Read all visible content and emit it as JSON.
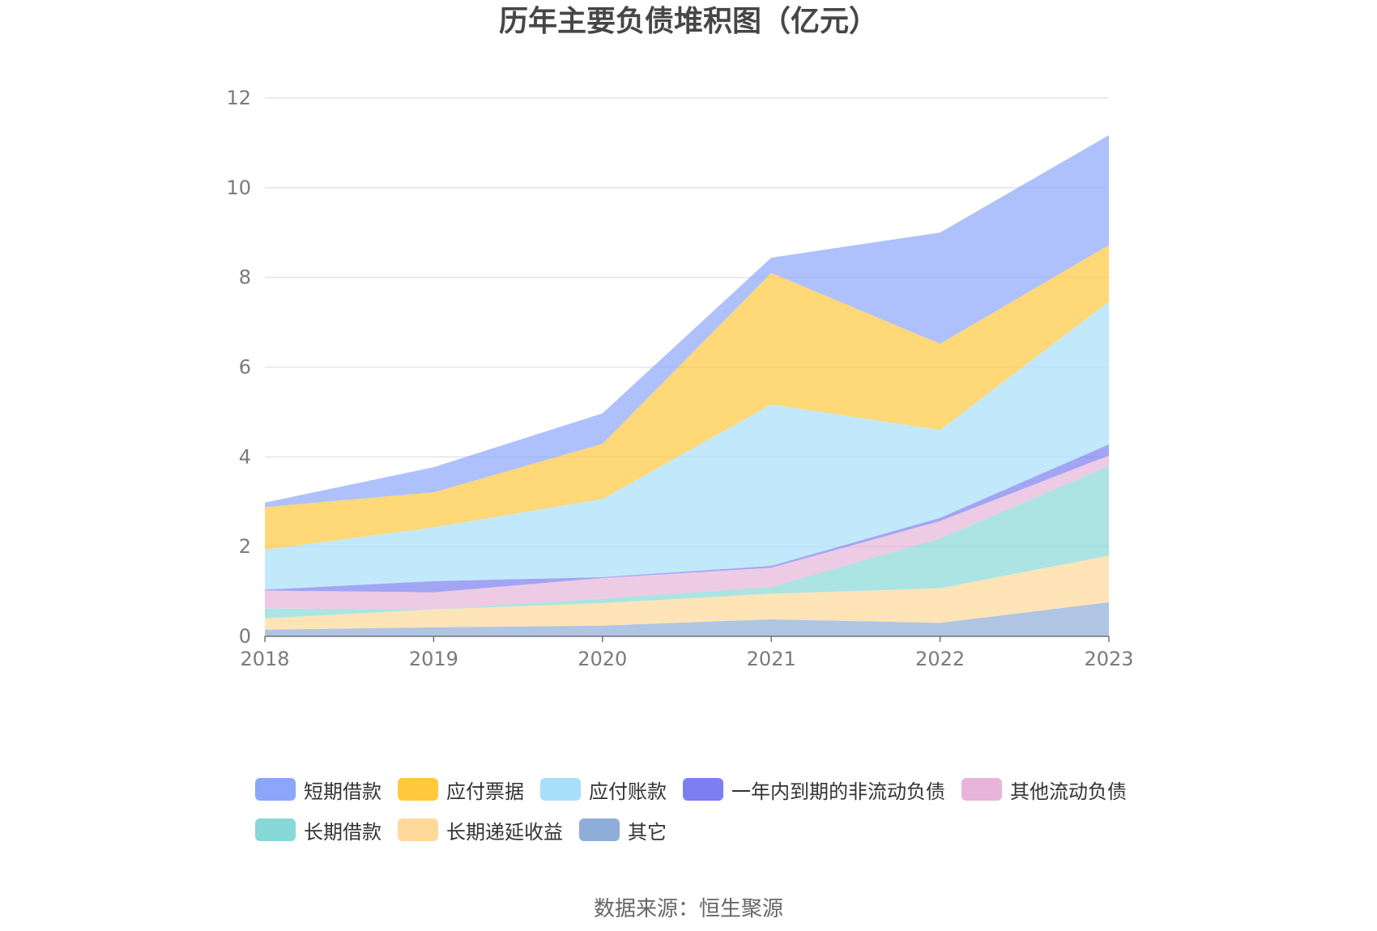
{
  "title": "历年主要负债堆积图（亿元）",
  "source": "数据来源：恒生聚源",
  "chart_data": {
    "type": "area",
    "stacked": true,
    "x": [
      "2018",
      "2019",
      "2020",
      "2021",
      "2022",
      "2023"
    ],
    "ylim": [
      0,
      12
    ],
    "yticks": [
      "0",
      "2",
      "4",
      "6",
      "8",
      "10",
      "12"
    ],
    "grid": true,
    "legend_position": "bottom",
    "series": [
      {
        "name": "其它",
        "color": "#8eadd9",
        "values": [
          0.15,
          0.2,
          0.24,
          0.38,
          0.3,
          0.76
        ]
      },
      {
        "name": "长期递延收益",
        "color": "#ffd999",
        "values": [
          0.25,
          0.4,
          0.5,
          0.57,
          0.77,
          1.04
        ]
      },
      {
        "name": "长期借款",
        "color": "#87d8d6",
        "values": [
          0.22,
          0.0,
          0.1,
          0.15,
          1.11,
          2.0
        ]
      },
      {
        "name": "其他流动负债",
        "color": "#e6b5d9",
        "values": [
          0.4,
          0.38,
          0.46,
          0.43,
          0.39,
          0.23
        ]
      },
      {
        "name": "一年内到期的非流动负债",
        "color": "#7b7ff0",
        "values": [
          0.02,
          0.25,
          0.02,
          0.04,
          0.07,
          0.25
        ]
      },
      {
        "name": "应付账款",
        "color": "#a8dffa",
        "values": [
          0.89,
          1.2,
          1.74,
          3.6,
          1.96,
          3.18
        ]
      },
      {
        "name": "应付票据",
        "color": "#ffc83d",
        "values": [
          0.95,
          0.78,
          1.23,
          2.93,
          1.92,
          1.26
        ]
      },
      {
        "name": "短期借款",
        "color": "#8ba6fb",
        "values": [
          0.1,
          0.56,
          0.68,
          0.34,
          2.48,
          2.45
        ]
      }
    ]
  },
  "legend": {
    "rows": [
      [
        {
          "label": "短期借款",
          "color": "#8ba6fb"
        },
        {
          "label": "应付票据",
          "color": "#ffc83d"
        },
        {
          "label": "应付账款",
          "color": "#a8dffa"
        },
        {
          "label": "一年内到期的非流动负债",
          "color": "#7b7ff0"
        },
        {
          "label": "其他流动负债",
          "color": "#e6b5d9"
        }
      ],
      [
        {
          "label": "长期借款",
          "color": "#87d8d6"
        },
        {
          "label": "长期递延收益",
          "color": "#ffd999"
        },
        {
          "label": "其它",
          "color": "#8eadd9"
        }
      ]
    ]
  }
}
